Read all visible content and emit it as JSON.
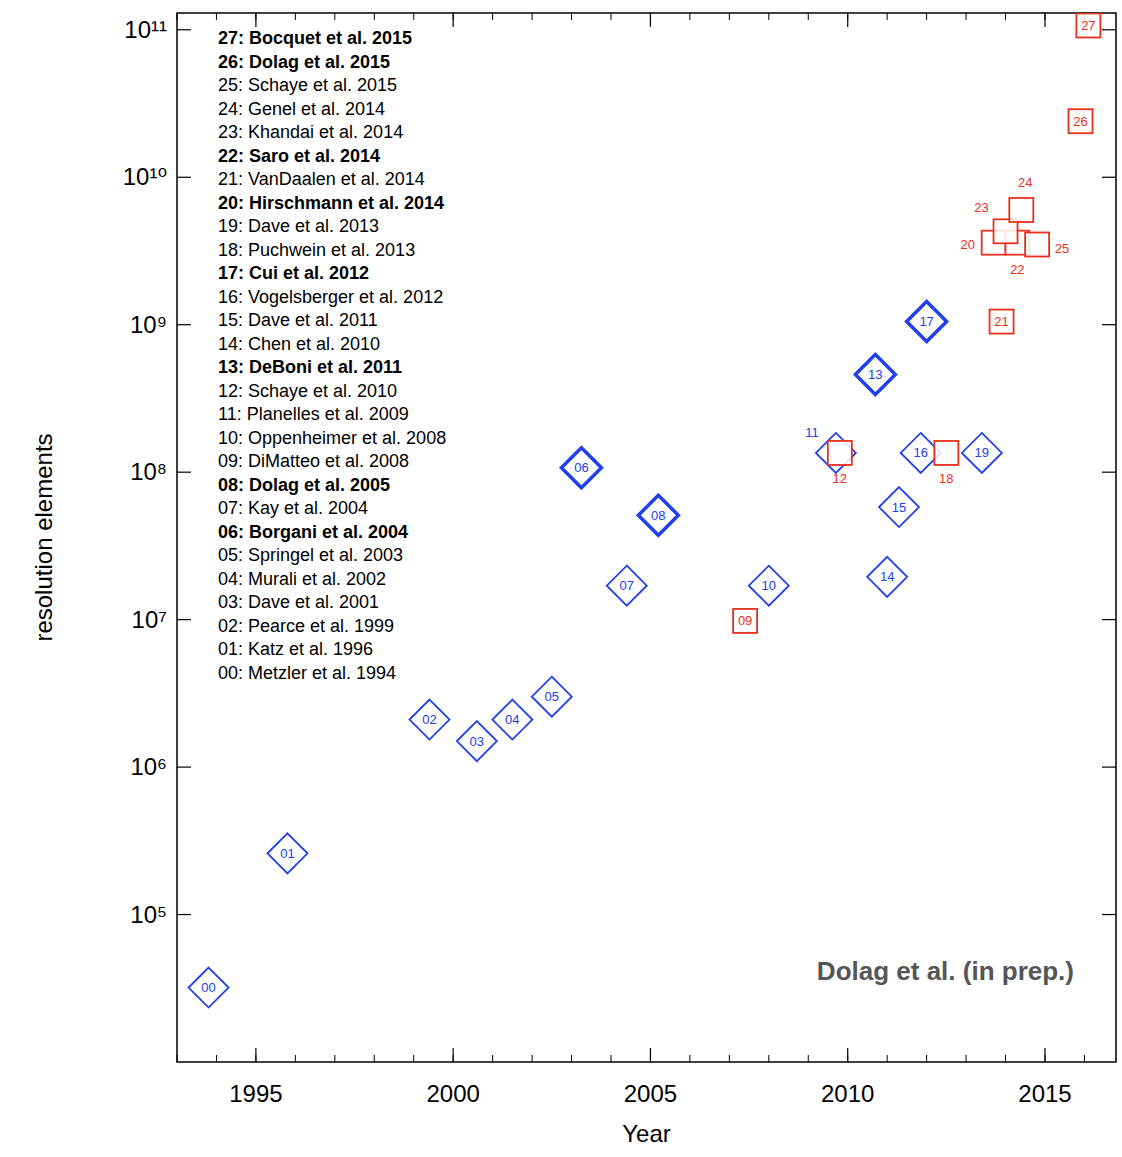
{
  "chart_data": {
    "type": "scatter",
    "x_label": "Year",
    "y_label": "resolution elements",
    "log": "y",
    "grid": false,
    "xlim": [
      1993,
      2016.8
    ],
    "xticks": [
      1995,
      2000,
      2005,
      2010,
      2015
    ],
    "ylim": [
      10000,
      130000000000
    ],
    "yticks": [
      {
        "value": 100000,
        "label": "10⁵"
      },
      {
        "value": 1000000,
        "label": "10⁶"
      },
      {
        "value": 10000000,
        "label": "10⁷"
      },
      {
        "value": 100000000,
        "label": "10⁸"
      },
      {
        "value": 1000000000,
        "label": "10⁹"
      },
      {
        "value": 10000000000,
        "label": "10¹⁰"
      },
      {
        "value": 100000000000,
        "label": "10¹¹"
      }
    ],
    "annotations": [
      "27: Bocquet et al. 2015",
      "26: Dolag et al. 2015",
      "25: Schaye et al. 2015",
      "24: Genel et al. 2014",
      "23: Khandai et al. 2014",
      "22: Saro et al. 2014",
      "21: VanDaalen et al. 2014",
      "20: Hirschmann et al. 2014",
      "19: Dave et al. 2013",
      "18: Puchwein et al. 2013",
      "17: Cui et al. 2012",
      "16: Vogelsberger et al. 2012",
      "15: Dave et al. 2011",
      "14: Chen et al. 2010",
      "13: DeBoni et al. 2011",
      "12: Schaye et al. 2010",
      "11: Planelles et al. 2009",
      "10: Oppenheimer et al. 2008",
      "09: DiMatteo et al. 2008",
      "08: Dolag et al. 2005",
      "07: Kay et al. 2004",
      "06: Borgani et al. 2004",
      "05: Springel et al. 2003",
      "04: Murali et al. 2002",
      "03: Dave et al. 2001",
      "02: Pearce et al. 1999",
      "01: Katz et al. 1996",
      "00: Metzler et al. 1994"
    ],
    "source": "Dolag et al. (in prep.)",
    "series": [
      {
        "color": "#2040f0",
        "marker": "diamond",
        "labels": [
          "00",
          "01",
          "02",
          "03",
          "04",
          "05",
          "06",
          "07",
          "08",
          "10",
          "11",
          "13",
          "14",
          "15",
          "16",
          "17",
          "19"
        ],
        "x": [
          1993.8,
          1995.8,
          1999.4,
          2000.6,
          2001.5,
          2002.5,
          2003.25,
          2004.4,
          2005.2,
          2008.0,
          2009.7,
          2010.7,
          2011.0,
          2011.3,
          2011.85,
          2012.0,
          2013.4
        ],
        "values": [
          32000,
          260000,
          2100000,
          1500000,
          2100000,
          3000000,
          107000000,
          17000000,
          51000000,
          17000000,
          135000000,
          460000000,
          19500000,
          58000000,
          135000000,
          1050000000,
          135000000
        ]
      },
      {
        "color": "#e8301c",
        "marker": "square",
        "labels": [
          "09",
          "12",
          "18",
          "20",
          "21",
          "22",
          "23",
          "24",
          "25",
          "26",
          "27"
        ],
        "x": [
          2007.4,
          2009.8,
          2012.5,
          2013.7,
          2013.9,
          2014.3,
          2014.0,
          2014.4,
          2014.8,
          2015.9,
          2016.1
        ],
        "values": [
          9800000,
          135000000,
          135000000,
          3600000000,
          1050000000,
          3600000000,
          4300000000,
          6000000000,
          3500000000,
          24000000000,
          107000000000
        ]
      }
    ]
  }
}
